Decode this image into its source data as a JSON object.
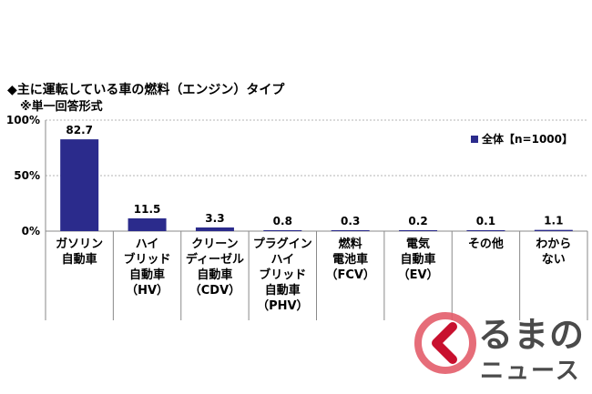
{
  "title": "◆主に運転している車の燃料（エンジン）タイプ",
  "subtitle": "※単一回答形式",
  "chart_data": {
    "type": "bar",
    "categories": [
      "ガソリン\n自動車",
      "ハイ\nブリッド\n自動車\n（HV）",
      "クリーン\nディーゼル\n自動車\n（CDV）",
      "プラグイン\nハイ\nブリッド\n自動車\n（PHV）",
      "燃料\n電池車\n（FCV）",
      "電気\n自動車\n（EV）",
      "その他",
      "わから\nない"
    ],
    "series": [
      {
        "name": "全体【n=1000】",
        "values": [
          82.7,
          11.5,
          3.3,
          0.8,
          0.3,
          0.2,
          0.1,
          1.1
        ]
      }
    ],
    "data_labels": [
      "82.7",
      "11.5",
      "3.3",
      "0.8",
      "0.3",
      "0.2",
      "0.1",
      "1.1"
    ],
    "y_ticks": [
      "0%",
      "50%",
      "100%"
    ],
    "y_tick_values": [
      0,
      50,
      100
    ],
    "ylim": [
      0,
      100
    ],
    "legend_position": "top-right",
    "colors": {
      "bar": "#2b2b8c",
      "grid": "#b5b5b5",
      "axis": "#8a8a8a"
    }
  },
  "logo": {
    "text1": "るまの",
    "text2": "ニュース",
    "icon": "chevron-circle-icon",
    "colors": {
      "outer": "#e35d6a",
      "inner": "#c8102e"
    }
  }
}
